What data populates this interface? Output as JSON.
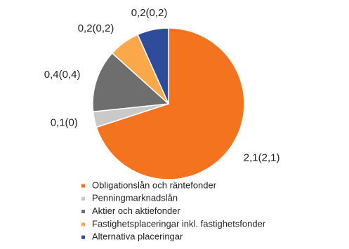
{
  "chart_data": {
    "type": "pie",
    "categories": [
      "Obligationslån och räntefonder",
      "Penningmarknadslån",
      "Aktier och aktiefonder",
      "Fastighetsplaceringar inkl. fastighetsfonder",
      "Alternativa placeringar"
    ],
    "values": [
      2.1,
      0.1,
      0.4,
      0.2,
      0.2
    ],
    "value_labels": [
      "2,1(2,1)",
      "0,1(0)",
      "0,4(0,4)",
      "0,2(0,2)",
      "0,2(0,2)"
    ],
    "colors": [
      "#f4731f",
      "#c9c9c9",
      "#6e6e6e",
      "#fba84a",
      "#2f4c9c"
    ],
    "legend": "bottom"
  }
}
